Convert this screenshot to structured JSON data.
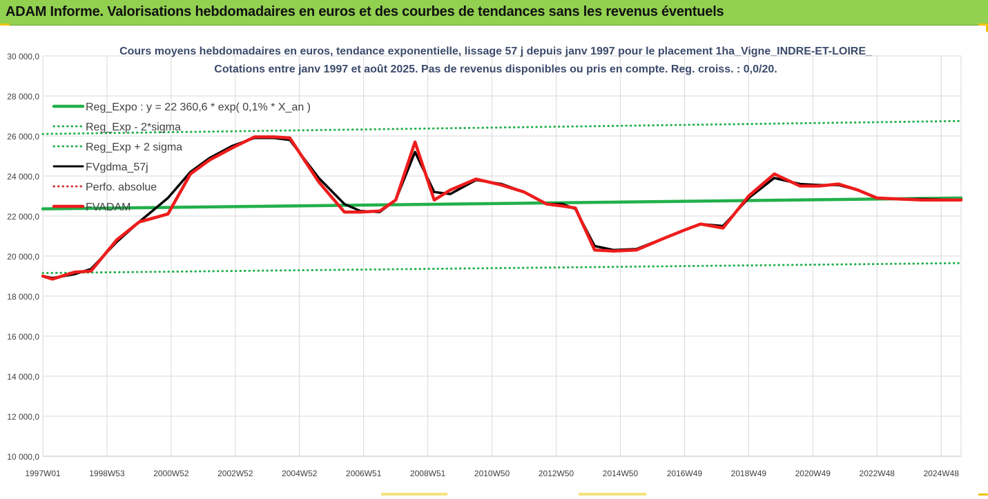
{
  "banner": {
    "title": "ADAM Informe. Valorisations hebdomadaires en euros et des courbes de tendances sans les revenus éventuels"
  },
  "colors": {
    "banner_bg": "#92d050",
    "reg_expo": "#22b04b",
    "fvgdma": "#000000",
    "fvadam": "#ee1c1c",
    "perfo": "#d03030",
    "corner_accent": "#f2c200"
  },
  "chart_data": {
    "type": "line",
    "title": "Cours moyens hebdomadaires en euros, tendance exponentielle, lissage 57 j depuis janv 1997 pour le placement 1ha_Vigne_INDRE-ET-LOIRE_",
    "subtitle": "Cotations entre janv 1997 et août 2025.  Pas de revenus disponibles ou pris en compte. Reg. croiss. : 0,0/20.",
    "xlabel": "",
    "ylabel": "",
    "ylim": [
      10000,
      30000
    ],
    "yticks": [
      "10 000,0",
      "12 000,0",
      "14 000,0",
      "16 000,0",
      "18 000,0",
      "20 000,0",
      "22 000,0",
      "24 000,0",
      "26 000,0",
      "28 000,0",
      "30 000,0"
    ],
    "x_range": [
      1997.0,
      2025.62
    ],
    "xticks": [
      {
        "label": "1997W01",
        "x": 1997.0
      },
      {
        "label": "1998W53",
        "x": 1999.0
      },
      {
        "label": "2000W52",
        "x": 2001.0
      },
      {
        "label": "2002W52",
        "x": 2003.0
      },
      {
        "label": "2004W52",
        "x": 2005.0
      },
      {
        "label": "2006W51",
        "x": 2007.0
      },
      {
        "label": "2008W51",
        "x": 2009.0
      },
      {
        "label": "2010W50",
        "x": 2011.0
      },
      {
        "label": "2012W50",
        "x": 2013.0
      },
      {
        "label": "2014W50",
        "x": 2015.0
      },
      {
        "label": "2016W49",
        "x": 2017.0
      },
      {
        "label": "2018W49",
        "x": 2019.0
      },
      {
        "label": "2020W49",
        "x": 2021.0
      },
      {
        "label": "2022W48",
        "x": 2023.0
      },
      {
        "label": "2024W48",
        "x": 2025.0
      }
    ],
    "grid": true,
    "legend_position": "top-left",
    "series": [
      {
        "name": "Reg_Expo : y = 22 360,6 * exp( 0,1% *  X_an )",
        "style": "solid-thick",
        "color": "#22b04b",
        "x": [
          1997.0,
          2025.62
        ],
        "y": [
          22360,
          22900
        ]
      },
      {
        "name": "Reg_Exp - 2*sigma",
        "style": "dotted",
        "color": "#22b04b",
        "x": [
          1997.0,
          2025.62
        ],
        "y": [
          26100,
          26750
        ]
      },
      {
        "name": "Reg_Exp + 2 sigma",
        "style": "dotted",
        "color": "#22b04b",
        "x": [
          1997.0,
          2025.62
        ],
        "y": [
          19150,
          19650
        ]
      },
      {
        "name": "FVgdma_57j",
        "style": "solid",
        "color": "#000000",
        "x": [
          1997.0,
          1997.3,
          1998.0,
          1998.5,
          1999.3,
          2000.0,
          2000.9,
          2001.6,
          2002.2,
          2002.9,
          2003.6,
          2004.2,
          2004.7,
          2005.6,
          2006.4,
          2006.9,
          2007.5,
          2008.0,
          2008.6,
          2009.2,
          2009.7,
          2010.5,
          2011.3,
          2012.0,
          2012.7,
          2013.2,
          2013.6,
          2014.2,
          2014.8,
          2015.5,
          2016.3,
          2017.0,
          2017.5,
          2018.2,
          2019.0,
          2019.8,
          2020.6,
          2021.2,
          2021.8,
          2022.4,
          2023.0,
          2023.7,
          2024.4,
          2025.62
        ],
        "y": [
          19000,
          18900,
          19100,
          19350,
          20700,
          21700,
          22900,
          24200,
          24900,
          25500,
          25900,
          25900,
          25800,
          23900,
          22600,
          22250,
          22200,
          22800,
          25200,
          23200,
          23100,
          23800,
          23600,
          23200,
          22600,
          22600,
          22350,
          20500,
          20300,
          20350,
          20850,
          21300,
          21600,
          21500,
          22900,
          23900,
          23600,
          23550,
          23550,
          23300,
          22900,
          22850,
          22850,
          22800
        ]
      },
      {
        "name": "Perfo. absolue",
        "style": "dotted",
        "color": "#d03030",
        "x": [],
        "y": []
      },
      {
        "name": "FVADAM",
        "style": "solid-thick",
        "color": "#ee1c1c",
        "x": [
          1997.0,
          1997.3,
          1998.0,
          1998.5,
          1999.3,
          2000.0,
          2000.9,
          2001.6,
          2002.2,
          2002.9,
          2003.6,
          2004.2,
          2004.7,
          2005.6,
          2006.4,
          2006.9,
          2007.5,
          2008.0,
          2008.6,
          2009.2,
          2009.7,
          2010.5,
          2011.3,
          2012.0,
          2012.7,
          2013.2,
          2013.6,
          2014.2,
          2014.8,
          2015.5,
          2016.3,
          2017.0,
          2017.5,
          2018.2,
          2019.0,
          2019.8,
          2020.6,
          2021.2,
          2021.8,
          2022.4,
          2023.0,
          2023.7,
          2024.4,
          2025.62
        ],
        "y": [
          19000,
          18850,
          19200,
          19250,
          20800,
          21700,
          22100,
          24100,
          24800,
          25400,
          25950,
          25950,
          25900,
          23700,
          22200,
          22200,
          22250,
          22800,
          25700,
          22800,
          23300,
          23850,
          23550,
          23200,
          22600,
          22500,
          22400,
          20300,
          20250,
          20300,
          20850,
          21300,
          21600,
          21400,
          23000,
          24100,
          23500,
          23500,
          23600,
          23300,
          22900,
          22850,
          22800,
          22800
        ]
      }
    ]
  }
}
